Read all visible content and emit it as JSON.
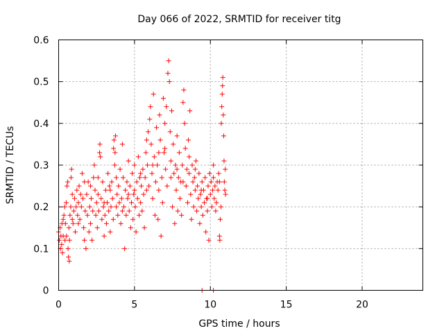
{
  "chart_data": {
    "type": "scatter",
    "title": "Day 066 of 2022, SRMTID for receiver titg",
    "xlabel": "GPS time / hours",
    "ylabel": "SRMTID / TECUs",
    "xlim": [
      0,
      24
    ],
    "ylim": [
      0,
      0.6
    ],
    "x_ticks": [
      0,
      5,
      10,
      15,
      20
    ],
    "x_tick_labels": [
      "0",
      "5",
      "10",
      "15",
      "20"
    ],
    "y_ticks": [
      0,
      0.1,
      0.2,
      0.3,
      0.4,
      0.5,
      0.6
    ],
    "y_tick_labels": [
      "0",
      "0.1",
      "0.2",
      "0.3",
      "0.4",
      "0.5",
      "0.6"
    ],
    "grid": true,
    "marker": "+",
    "color": "#ff0000",
    "series": [
      {
        "name": "SRMTID",
        "points": [
          [
            0.0,
            0.14
          ],
          [
            0.05,
            0.12
          ],
          [
            0.1,
            0.15
          ],
          [
            0.12,
            0.1
          ],
          [
            0.15,
            0.13
          ],
          [
            0.2,
            0.11
          ],
          [
            0.22,
            0.16
          ],
          [
            0.25,
            0.09
          ],
          [
            0.3,
            0.13
          ],
          [
            0.35,
            0.18
          ],
          [
            0.4,
            0.2
          ],
          [
            0.42,
            0.12
          ],
          [
            0.45,
            0.16
          ],
          [
            0.5,
            0.21
          ],
          [
            0.52,
            0.13
          ],
          [
            0.55,
            0.25
          ],
          [
            0.6,
            0.26
          ],
          [
            0.62,
            0.1
          ],
          [
            0.65,
            0.08
          ],
          [
            0.68,
            0.15
          ],
          [
            0.7,
            0.07
          ],
          [
            0.72,
            0.12
          ],
          [
            0.75,
            0.18
          ],
          [
            0.8,
            0.2
          ],
          [
            0.82,
            0.27
          ],
          [
            0.85,
            0.29
          ],
          [
            0.9,
            0.17
          ],
          [
            0.95,
            0.16
          ],
          [
            1.0,
            0.19
          ],
          [
            1.05,
            0.22
          ],
          [
            1.1,
            0.14
          ],
          [
            1.15,
            0.2
          ],
          [
            1.2,
            0.24
          ],
          [
            1.25,
            0.18
          ],
          [
            1.3,
            0.21
          ],
          [
            1.35,
            0.25
          ],
          [
            1.4,
            0.17
          ],
          [
            1.45,
            0.23
          ],
          [
            1.5,
            0.2
          ],
          [
            1.55,
            0.28
          ],
          [
            1.6,
            0.22
          ],
          [
            1.65,
            0.15
          ],
          [
            1.7,
            0.12
          ],
          [
            1.75,
            0.19
          ],
          [
            1.8,
            0.1
          ],
          [
            1.85,
            0.23
          ],
          [
            1.9,
            0.18
          ],
          [
            1.95,
            0.26
          ],
          [
            2.0,
            0.14
          ],
          [
            2.05,
            0.2
          ],
          [
            2.1,
            0.16
          ],
          [
            2.15,
            0.22
          ],
          [
            2.2,
            0.12
          ],
          [
            2.25,
            0.19
          ],
          [
            2.3,
            0.27
          ],
          [
            2.35,
            0.3
          ],
          [
            2.4,
            0.24
          ],
          [
            2.45,
            0.18
          ],
          [
            2.5,
            0.21
          ],
          [
            2.55,
            0.15
          ],
          [
            2.6,
            0.23
          ],
          [
            2.65,
            0.19
          ],
          [
            2.7,
            0.33
          ],
          [
            2.72,
            0.35
          ],
          [
            2.75,
            0.32
          ],
          [
            2.8,
            0.22
          ],
          [
            2.85,
            0.17
          ],
          [
            2.9,
            0.26
          ],
          [
            2.95,
            0.2
          ],
          [
            3.0,
            0.13
          ],
          [
            3.05,
            0.18
          ],
          [
            3.1,
            0.24
          ],
          [
            3.15,
            0.16
          ],
          [
            3.2,
            0.21
          ],
          [
            3.25,
            0.28
          ],
          [
            3.3,
            0.19
          ],
          [
            3.35,
            0.25
          ],
          [
            3.4,
            0.14
          ],
          [
            3.45,
            0.2
          ],
          [
            3.5,
            0.26
          ],
          [
            3.55,
            0.22
          ],
          [
            3.6,
            0.17
          ],
          [
            3.62,
            0.34
          ],
          [
            3.65,
            0.36
          ],
          [
            3.7,
            0.3
          ],
          [
            3.72,
            0.33
          ],
          [
            3.75,
            0.37
          ],
          [
            3.8,
            0.27
          ],
          [
            3.85,
            0.23
          ],
          [
            3.9,
            0.18
          ],
          [
            3.95,
            0.25
          ],
          [
            4.0,
            0.21
          ],
          [
            4.05,
            0.29
          ],
          [
            4.1,
            0.16
          ],
          [
            4.15,
            0.22
          ],
          [
            4.2,
            0.35
          ],
          [
            4.25,
            0.27
          ],
          [
            4.3,
            0.2
          ],
          [
            4.35,
            0.1
          ],
          [
            4.4,
            0.24
          ],
          [
            4.45,
            0.18
          ],
          [
            4.5,
            0.26
          ],
          [
            4.55,
            0.22
          ],
          [
            4.6,
            0.31
          ],
          [
            4.65,
            0.19
          ],
          [
            4.7,
            0.25
          ],
          [
            4.75,
            0.15
          ],
          [
            4.8,
            0.21
          ],
          [
            4.85,
            0.28
          ],
          [
            4.9,
            0.17
          ],
          [
            4.95,
            0.23
          ],
          [
            5.0,
            0.3
          ],
          [
            5.05,
            0.2
          ],
          [
            5.1,
            0.14
          ],
          [
            5.15,
            0.26
          ],
          [
            5.2,
            0.22
          ],
          [
            5.25,
            0.32
          ],
          [
            5.3,
            0.18
          ],
          [
            5.35,
            0.27
          ],
          [
            5.4,
            0.21
          ],
          [
            5.45,
            0.25
          ],
          [
            5.5,
            0.19
          ],
          [
            5.55,
            0.29
          ],
          [
            5.6,
            0.23
          ],
          [
            5.65,
            0.15
          ],
          [
            5.7,
            0.27
          ],
          [
            5.75,
            0.33
          ],
          [
            5.8,
            0.36
          ],
          [
            5.85,
            0.3
          ],
          [
            5.9,
            0.38
          ],
          [
            5.95,
            0.25
          ],
          [
            6.0,
            0.41
          ],
          [
            6.05,
            0.44
          ],
          [
            6.1,
            0.35
          ],
          [
            6.15,
            0.28
          ],
          [
            6.2,
            0.22
          ],
          [
            6.25,
            0.47
          ],
          [
            6.3,
            0.32
          ],
          [
            6.35,
            0.18
          ],
          [
            6.4,
            0.26
          ],
          [
            6.45,
            0.39
          ],
          [
            6.5,
            0.3
          ],
          [
            6.55,
            0.17
          ],
          [
            6.6,
            0.24
          ],
          [
            6.65,
            0.42
          ],
          [
            6.7,
            0.36
          ],
          [
            6.75,
            0.13
          ],
          [
            6.8,
            0.27
          ],
          [
            6.85,
            0.21
          ],
          [
            6.9,
            0.46
          ],
          [
            6.95,
            0.33
          ],
          [
            7.0,
            0.4
          ],
          [
            7.05,
            0.29
          ],
          [
            7.1,
            0.44
          ],
          [
            7.15,
            0.25
          ],
          [
            7.2,
            0.52
          ],
          [
            7.25,
            0.55
          ],
          [
            7.3,
            0.5
          ],
          [
            7.35,
            0.38
          ],
          [
            7.4,
            0.31
          ],
          [
            7.45,
            0.43
          ],
          [
            7.5,
            0.2
          ],
          [
            7.55,
            0.35
          ],
          [
            7.6,
            0.28
          ],
          [
            7.65,
            0.16
          ],
          [
            7.7,
            0.3
          ],
          [
            7.75,
            0.24
          ],
          [
            7.8,
            0.37
          ],
          [
            7.85,
            0.19
          ],
          [
            7.9,
            0.27
          ],
          [
            7.95,
            0.33
          ],
          [
            8.0,
            0.22
          ],
          [
            8.05,
            0.26
          ],
          [
            8.1,
            0.18
          ],
          [
            8.15,
            0.3
          ],
          [
            8.2,
            0.45
          ],
          [
            8.25,
            0.48
          ],
          [
            8.3,
            0.4
          ],
          [
            8.35,
            0.34
          ],
          [
            8.4,
            0.25
          ],
          [
            8.45,
            0.29
          ],
          [
            8.5,
            0.21
          ],
          [
            8.55,
            0.36
          ],
          [
            8.6,
            0.28
          ],
          [
            8.65,
            0.43
          ],
          [
            8.7,
            0.23
          ],
          [
            8.75,
            0.17
          ],
          [
            8.8,
            0.3
          ],
          [
            8.85,
            0.26
          ],
          [
            8.9,
            0.2
          ],
          [
            8.95,
            0.27
          ],
          [
            9.0,
            0.24
          ],
          [
            9.05,
            0.31
          ],
          [
            9.1,
            0.19
          ],
          [
            9.15,
            0.25
          ],
          [
            9.2,
            0.22
          ],
          [
            9.25,
            0.28
          ],
          [
            9.3,
            0.16
          ],
          [
            9.35,
            0.23
          ],
          [
            9.4,
            0.2
          ],
          [
            9.45,
            0.26
          ],
          [
            9.5,
            0.18
          ],
          [
            9.55,
            0.24
          ],
          [
            9.6,
            0.21
          ],
          [
            9.65,
            0.27
          ],
          [
            9.7,
            0.14
          ],
          [
            9.75,
            0.22
          ],
          [
            9.8,
            0.19
          ],
          [
            9.85,
            0.25
          ],
          [
            9.9,
            0.12
          ],
          [
            9.95,
            0.28
          ],
          [
            10.0,
            0.23
          ],
          [
            10.05,
            0.26
          ],
          [
            10.1,
            0.2
          ],
          [
            10.15,
            0.24
          ],
          [
            10.2,
            0.27
          ],
          [
            10.25,
            0.22
          ],
          [
            10.3,
            0.25
          ],
          [
            10.35,
            0.19
          ],
          [
            10.4,
            0.21
          ],
          [
            10.45,
            0.26
          ],
          [
            10.5,
            0.24
          ],
          [
            10.55,
            0.28
          ],
          [
            10.6,
            0.13
          ],
          [
            10.62,
            0.12
          ],
          [
            10.65,
            0.17
          ],
          [
            10.7,
            0.2
          ],
          [
            10.72,
            0.4
          ],
          [
            10.75,
            0.44
          ],
          [
            10.78,
            0.47
          ],
          [
            10.8,
            0.49
          ],
          [
            10.82,
            0.51
          ],
          [
            10.85,
            0.42
          ],
          [
            10.88,
            0.37
          ],
          [
            10.9,
            0.31
          ],
          [
            10.92,
            0.26
          ],
          [
            10.95,
            0.24
          ],
          [
            10.98,
            0.29
          ],
          [
            11.0,
            0.23
          ],
          [
            0.3,
            0.17
          ],
          [
            0.9,
            0.23
          ],
          [
            1.3,
            0.16
          ],
          [
            1.7,
            0.26
          ],
          [
            2.1,
            0.25
          ],
          [
            2.6,
            0.27
          ],
          [
            3.0,
            0.21
          ],
          [
            3.4,
            0.24
          ],
          [
            3.8,
            0.2
          ],
          [
            4.2,
            0.19
          ],
          [
            4.6,
            0.23
          ],
          [
            5.0,
            0.24
          ],
          [
            5.4,
            0.28
          ],
          [
            5.8,
            0.24
          ],
          [
            6.2,
            0.3
          ],
          [
            6.6,
            0.33
          ],
          [
            7.0,
            0.34
          ],
          [
            7.4,
            0.27
          ],
          [
            7.8,
            0.29
          ],
          [
            8.2,
            0.26
          ],
          [
            8.6,
            0.32
          ],
          [
            9.0,
            0.29
          ],
          [
            9.4,
            0.24
          ],
          [
            9.8,
            0.22
          ],
          [
            10.2,
            0.3
          ],
          [
            10.6,
            0.26
          ],
          [
            9.45,
            0.0
          ],
          [
            10.2,
            0.0
          ]
        ]
      }
    ]
  }
}
